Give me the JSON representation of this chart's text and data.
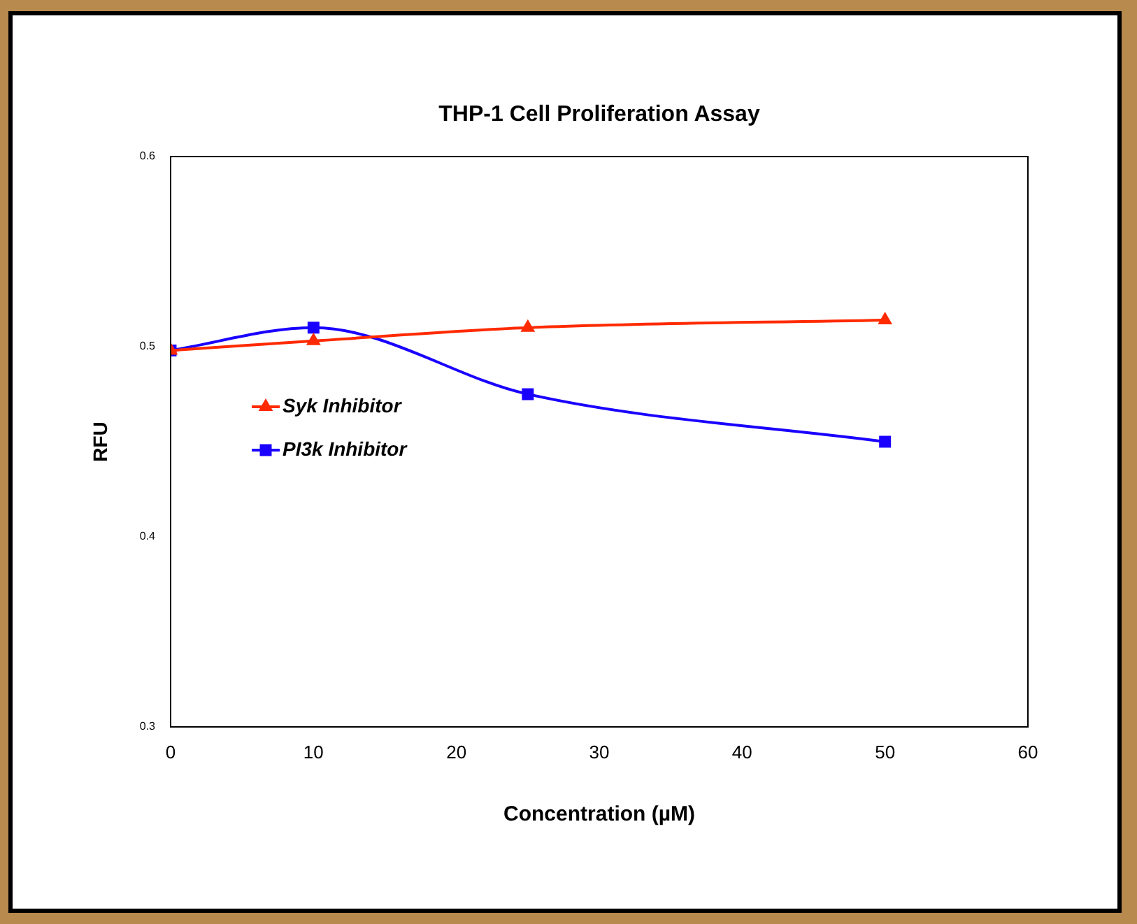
{
  "chart_data": {
    "type": "line",
    "title": "THP-1 Cell Proliferation Assay",
    "xlabel": "Concentration (µM)",
    "ylabel": "RFU",
    "x": [
      0,
      10,
      25,
      50
    ],
    "series": [
      {
        "name": "Syk Inhibitor",
        "color": "#ff2a00",
        "values": [
          0.498,
          0.503,
          0.51,
          0.514
        ],
        "marker": "triangle"
      },
      {
        "name": "PI3k Inhibitor",
        "color": "#1a00ff",
        "values": [
          0.498,
          0.51,
          0.475,
          0.45
        ],
        "marker": "square"
      }
    ],
    "xlim": [
      0,
      60
    ],
    "xticks": [
      0,
      10,
      20,
      30,
      40,
      50,
      60
    ],
    "ylim": [
      0.3,
      0.6
    ],
    "yticks": [
      0.3,
      0.4,
      0.5,
      0.6
    ],
    "grid": false,
    "legend": "left"
  }
}
